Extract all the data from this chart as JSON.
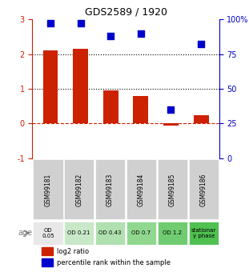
{
  "title": "GDS2589 / 1920",
  "samples": [
    "GSM99181",
    "GSM99182",
    "GSM99183",
    "GSM99184",
    "GSM99185",
    "GSM99186"
  ],
  "log2_ratio": [
    2.1,
    2.15,
    0.95,
    0.8,
    -0.05,
    0.25
  ],
  "percentile_rank": [
    97,
    97,
    88,
    90,
    35,
    82
  ],
  "bar_color": "#cc2200",
  "dot_color": "#0000cc",
  "ylim_left": [
    -1,
    3
  ],
  "ylim_right": [
    0,
    100
  ],
  "yticks_left": [
    -1,
    0,
    1,
    2,
    3
  ],
  "yticks_right": [
    0,
    25,
    50,
    75,
    100
  ],
  "yticklabels_left": [
    "-1",
    "0",
    "1",
    "2",
    "3"
  ],
  "yticklabels_right": [
    "0",
    "25",
    "50",
    "75",
    "100%"
  ],
  "hlines_dotted": [
    1,
    2
  ],
  "hline_dashed": 0,
  "age_labels": [
    "OD\n0.05",
    "OD 0.21",
    "OD 0.43",
    "OD 0.7",
    "OD 1.2",
    "stationar\ny phase"
  ],
  "age_colors": [
    "#e8e8e8",
    "#c8e8c8",
    "#b0e0b0",
    "#90d890",
    "#70cc70",
    "#50c050"
  ],
  "age_row_label": "age",
  "legend_bar": "log2 ratio",
  "legend_dot": "percentile rank within the sample"
}
